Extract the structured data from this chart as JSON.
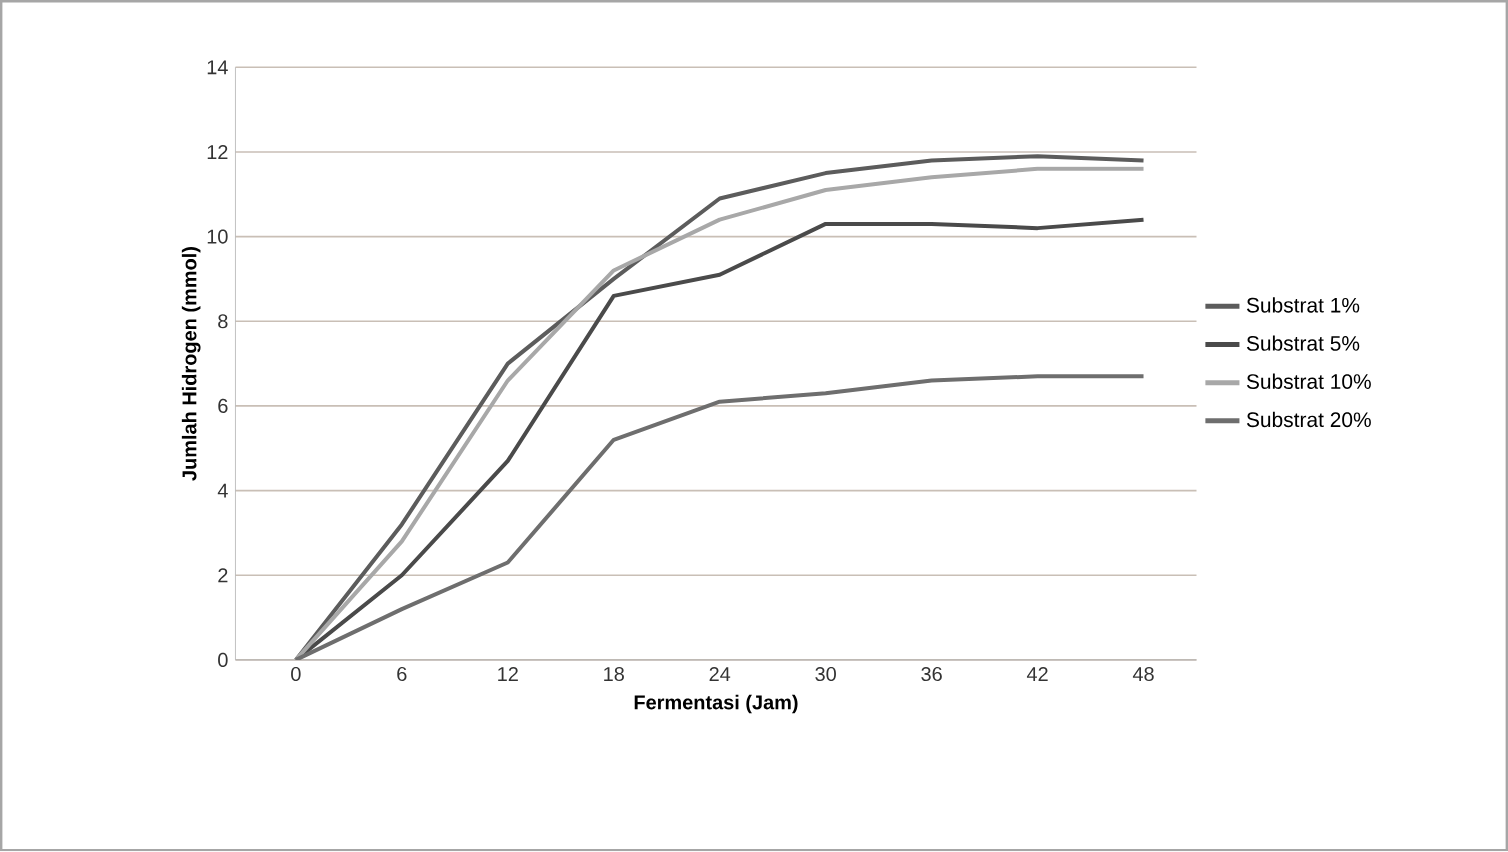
{
  "chart_data": {
    "type": "line",
    "xlabel": "Fermentasi (Jam)",
    "ylabel": "Jumlah Hidrogen (mmol)",
    "categories": [
      "0",
      "6",
      "12",
      "18",
      "24",
      "30",
      "36",
      "42",
      "48"
    ],
    "series": [
      {
        "name": "Substrat  1%",
        "color": "#5c5c5c",
        "values": [
          0,
          3.2,
          7.0,
          9.0,
          10.9,
          11.5,
          11.8,
          11.9,
          11.8
        ]
      },
      {
        "name": "Substrat 5%",
        "color": "#4a4a4a",
        "values": [
          0,
          2.0,
          4.7,
          8.6,
          9.1,
          10.3,
          10.3,
          10.2,
          10.4
        ]
      },
      {
        "name": "Substrat 10%",
        "color": "#a8a8a8",
        "values": [
          0,
          2.8,
          6.6,
          9.2,
          10.4,
          11.1,
          11.4,
          11.6,
          11.6
        ]
      },
      {
        "name": "Substrat 20%",
        "color": "#6e6e6e",
        "values": [
          0,
          1.2,
          2.3,
          5.2,
          6.1,
          6.3,
          6.6,
          6.7,
          6.7
        ]
      }
    ],
    "ylim": [
      0,
      14
    ],
    "yticks": [
      0,
      2,
      4,
      6,
      8,
      10,
      12,
      14
    ],
    "grid": "y",
    "legend": "right"
  }
}
